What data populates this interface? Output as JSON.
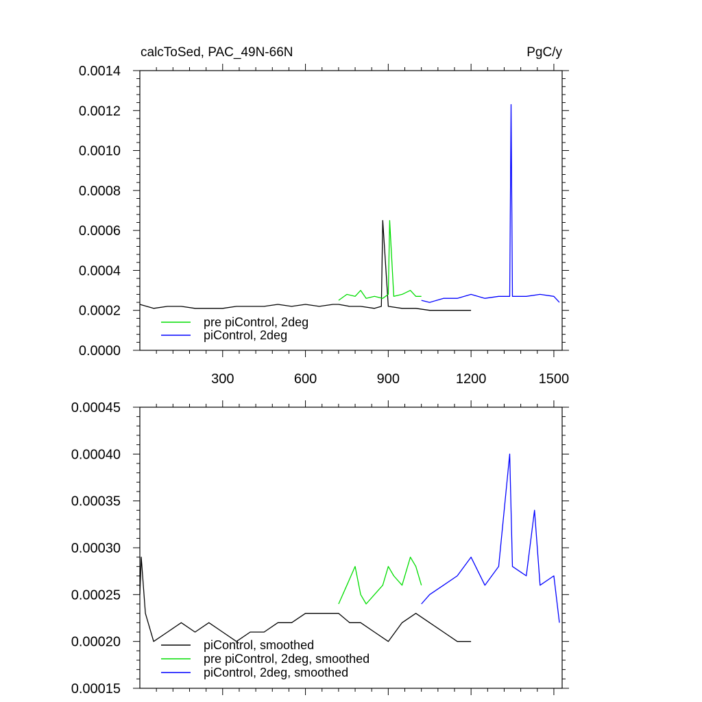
{
  "chart_data": [
    {
      "type": "line",
      "title": "calcToSed, PAC_49N-66N",
      "units": "PgC/y",
      "xlim": [
        0,
        1530
      ],
      "ylim": [
        0.0,
        0.0014
      ],
      "x_ticks": [
        300,
        600,
        900,
        1200,
        1500
      ],
      "x_tick_labels": [
        "300",
        "600",
        "900",
        "1200",
        "1500"
      ],
      "y_ticks": [
        0.0,
        0.0002,
        0.0004,
        0.0006,
        0.0008,
        0.001,
        0.0012,
        0.0014
      ],
      "y_tick_labels": [
        "0.0000",
        "0.0002",
        "0.0004",
        "0.0006",
        "0.0008",
        "0.0010",
        "0.0012",
        "0.0014"
      ],
      "legend_position": "bottom-left",
      "legend": [
        {
          "label": "pre piControl, 2deg",
          "color": "#00dd00"
        },
        {
          "label": "piControl, 2deg",
          "color": "#0000ff"
        }
      ],
      "series": [
        {
          "color": "#000000",
          "x": [
            0,
            50,
            100,
            150,
            200,
            250,
            300,
            350,
            400,
            450,
            500,
            550,
            600,
            650,
            700,
            720,
            760,
            800,
            850,
            875,
            880,
            900,
            950,
            1000,
            1050,
            1100,
            1150,
            1200
          ],
          "y": [
            0.00023,
            0.00021,
            0.00022,
            0.00022,
            0.00021,
            0.00021,
            0.00021,
            0.00022,
            0.00022,
            0.00022,
            0.00023,
            0.00022,
            0.00023,
            0.00022,
            0.00023,
            0.00023,
            0.00022,
            0.00022,
            0.00021,
            0.00022,
            0.00065,
            0.00022,
            0.00021,
            0.00021,
            0.0002,
            0.0002,
            0.0002,
            0.0002
          ]
        },
        {
          "color": "#00dd00",
          "x": [
            720,
            750,
            780,
            800,
            820,
            850,
            880,
            900,
            905,
            920,
            950,
            980,
            1000,
            1020
          ],
          "y": [
            0.00025,
            0.00028,
            0.00027,
            0.0003,
            0.00026,
            0.00027,
            0.00026,
            0.00028,
            0.00065,
            0.00027,
            0.00028,
            0.0003,
            0.00027,
            0.00027
          ]
        },
        {
          "color": "#0000ff",
          "x": [
            1020,
            1050,
            1100,
            1150,
            1200,
            1250,
            1300,
            1340,
            1345,
            1350,
            1400,
            1450,
            1500,
            1520
          ],
          "y": [
            0.00025,
            0.00024,
            0.00026,
            0.00026,
            0.00028,
            0.00026,
            0.00027,
            0.00027,
            0.00123,
            0.00027,
            0.00027,
            0.00028,
            0.00027,
            0.00024
          ]
        }
      ]
    },
    {
      "type": "line",
      "xlim": [
        0,
        1530
      ],
      "ylim": [
        0.00015,
        0.00045
      ],
      "x_ticks": [
        300,
        600,
        900,
        1200,
        1500
      ],
      "y_ticks": [
        0.00015,
        0.0002,
        0.00025,
        0.0003,
        0.00035,
        0.0004,
        0.00045
      ],
      "y_tick_labels": [
        "0.00015",
        "0.00020",
        "0.00025",
        "0.00030",
        "0.00035",
        "0.00040",
        "0.00045"
      ],
      "legend_position": "bottom-left",
      "legend": [
        {
          "label": "piControl, smoothed",
          "color": "#000000"
        },
        {
          "label": "pre piControl, 2deg, smoothed",
          "color": "#00dd00"
        },
        {
          "label": "piControl, 2deg, smoothed",
          "color": "#0000ff"
        }
      ],
      "series": [
        {
          "color": "#000000",
          "x": [
            0,
            5,
            20,
            50,
            100,
            150,
            200,
            250,
            300,
            350,
            400,
            450,
            500,
            550,
            600,
            650,
            700,
            720,
            760,
            800,
            850,
            900,
            950,
            1000,
            1050,
            1100,
            1150,
            1200
          ],
          "y": [
            0.00025,
            0.00029,
            0.00023,
            0.0002,
            0.00021,
            0.00022,
            0.00021,
            0.00022,
            0.00021,
            0.0002,
            0.00021,
            0.00021,
            0.00022,
            0.00022,
            0.00023,
            0.00023,
            0.00023,
            0.00023,
            0.00022,
            0.00022,
            0.00021,
            0.0002,
            0.00022,
            0.00023,
            0.00022,
            0.00021,
            0.0002,
            0.0002
          ]
        },
        {
          "color": "#00dd00",
          "x": [
            720,
            750,
            780,
            800,
            820,
            850,
            880,
            900,
            920,
            950,
            980,
            1000,
            1020
          ],
          "y": [
            0.00024,
            0.00026,
            0.00028,
            0.00025,
            0.00024,
            0.00025,
            0.00026,
            0.00028,
            0.00027,
            0.00026,
            0.00029,
            0.00028,
            0.00026
          ]
        },
        {
          "color": "#0000ff",
          "x": [
            1020,
            1050,
            1100,
            1150,
            1200,
            1250,
            1300,
            1340,
            1350,
            1400,
            1430,
            1450,
            1500,
            1520
          ],
          "y": [
            0.00024,
            0.00025,
            0.00026,
            0.00027,
            0.00029,
            0.00026,
            0.00028,
            0.0004,
            0.00028,
            0.00027,
            0.00034,
            0.00026,
            0.00027,
            0.00022
          ]
        }
      ]
    }
  ]
}
